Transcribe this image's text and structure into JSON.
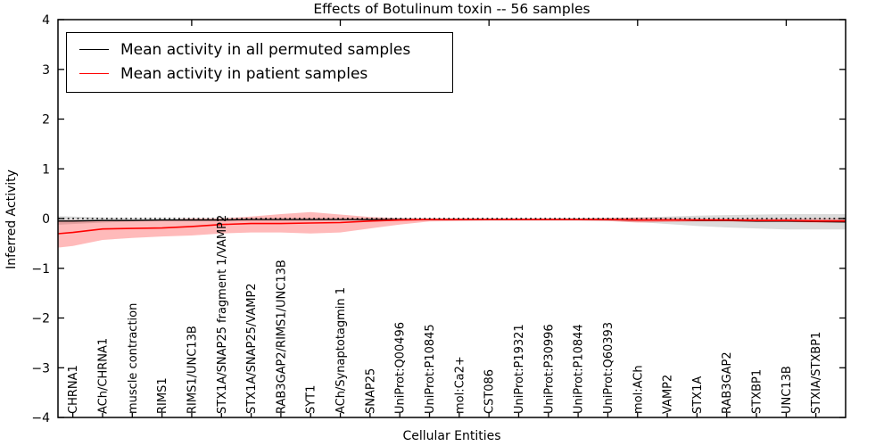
{
  "chart_data": {
    "type": "line",
    "title": "Effects of Botulinum toxin -- 56 samples",
    "xlabel": "Cellular Entities",
    "ylabel": "Inferred Activity",
    "ylim": [
      -4,
      4
    ],
    "xlim": [
      0.5,
      27
    ],
    "grid": false,
    "legend_position": "upper left",
    "yticks": [
      4,
      3,
      2,
      1,
      0,
      -1,
      -2,
      -3,
      -4
    ],
    "ytick_labels": [
      "4",
      "3",
      "2",
      "1",
      "0",
      "−1",
      "−2",
      "−3",
      "−4"
    ],
    "xticks_top": [
      5,
      10,
      15,
      20,
      25
    ],
    "categories": [
      "CHRNA1",
      "ACh/CHRNA1",
      "muscle contraction",
      "RIMS1",
      "RIMS1/UNC13B",
      "STX1A/SNAP25 fragment 1/VAMP2",
      "STX1A/SNAP25/VAMP2",
      "RAB3GAP2/RIMS1/UNC13B",
      "SYT1",
      "ACh/Synaptotagmin 1",
      "SNAP25",
      "UniProt:Q00496",
      "UniProt:P10845",
      "mol:Ca2+",
      "CST086",
      "UniProt:P19321",
      "UniProt:P30996",
      "UniProt:P10844",
      "UniProt:Q60393",
      "mol:ACh",
      "VAMP2",
      "STX1A",
      "RAB3GAP2",
      "STXBP1",
      "UNC13B",
      "STXIA/STXBP1"
    ],
    "category_x": [
      1,
      2,
      3,
      4,
      5,
      6,
      7,
      8,
      9,
      10,
      11,
      12,
      13,
      14,
      15,
      16,
      17,
      18,
      19,
      20,
      21,
      22,
      23,
      24,
      25,
      26
    ],
    "x": [
      0,
      1,
      2,
      3,
      4,
      5,
      6,
      7,
      8,
      9,
      10,
      11,
      12,
      13,
      14,
      15,
      16,
      17,
      18,
      19,
      20,
      21,
      22,
      23,
      24,
      25,
      26,
      27
    ],
    "series": [
      {
        "name": "Mean activity in all permuted samples",
        "color": "#000000",
        "line_width": 1.3,
        "band_color": "rgba(0,0,0,0.14)",
        "values": [
          -0.05,
          -0.05,
          -0.04,
          -0.04,
          -0.03,
          -0.03,
          -0.03,
          -0.02,
          -0.02,
          -0.02,
          -0.02,
          -0.02,
          -0.02,
          -0.02,
          -0.02,
          -0.02,
          -0.02,
          -0.02,
          -0.02,
          -0.02,
          -0.03,
          -0.03,
          -0.04,
          -0.04,
          -0.05,
          -0.05,
          -0.06,
          -0.07
        ],
        "band_upper": [
          0.06,
          0.04,
          0.02,
          0.01,
          0.01,
          0.01,
          0.01,
          0.01,
          0.01,
          0.01,
          0.01,
          0.005,
          0.005,
          0.005,
          0.005,
          0.005,
          0.005,
          0.005,
          0.01,
          0.01,
          0.02,
          0.04,
          0.06,
          0.07,
          0.08,
          0.09,
          0.09,
          0.09
        ],
        "band_lower": [
          -0.14,
          -0.11,
          -0.08,
          -0.06,
          -0.05,
          -0.05,
          -0.05,
          -0.05,
          -0.05,
          -0.05,
          -0.04,
          -0.04,
          -0.04,
          -0.04,
          -0.04,
          -0.04,
          -0.04,
          -0.04,
          -0.04,
          -0.05,
          -0.07,
          -0.11,
          -0.15,
          -0.18,
          -0.2,
          -0.22,
          -0.22,
          -0.22
        ]
      },
      {
        "name": "Mean activity in patient samples",
        "color": "#ff0000",
        "line_width": 1.6,
        "band_color": "rgba(255,0,0,0.27)",
        "values": [
          -0.33,
          -0.28,
          -0.21,
          -0.2,
          -0.19,
          -0.16,
          -0.12,
          -0.1,
          -0.1,
          -0.09,
          -0.08,
          -0.05,
          -0.03,
          -0.02,
          -0.02,
          -0.02,
          -0.02,
          -0.02,
          -0.02,
          -0.02,
          -0.03,
          -0.03,
          -0.03,
          -0.03,
          -0.04,
          -0.04,
          -0.05,
          -0.05
        ],
        "band_upper": [
          -0.04,
          -0.03,
          -0.04,
          -0.04,
          -0.03,
          0.0,
          0.0,
          0.04,
          0.09,
          0.13,
          0.08,
          0.03,
          0.01,
          0.0,
          0.0,
          0.0,
          0.0,
          0.0,
          0.0,
          0.01,
          0.02,
          0.01,
          0.0,
          0.0,
          0.0,
          0.0,
          0.0,
          0.0
        ],
        "band_lower": [
          -0.62,
          -0.55,
          -0.43,
          -0.39,
          -0.36,
          -0.34,
          -0.3,
          -0.28,
          -0.28,
          -0.3,
          -0.28,
          -0.2,
          -0.12,
          -0.06,
          -0.05,
          -0.04,
          -0.04,
          -0.04,
          -0.04,
          -0.05,
          -0.08,
          -0.07,
          -0.06,
          -0.06,
          -0.07,
          -0.07,
          -0.08,
          -0.08
        ]
      }
    ],
    "zero_line": {
      "y": 0,
      "style": "dotted",
      "color": "#000000"
    }
  }
}
